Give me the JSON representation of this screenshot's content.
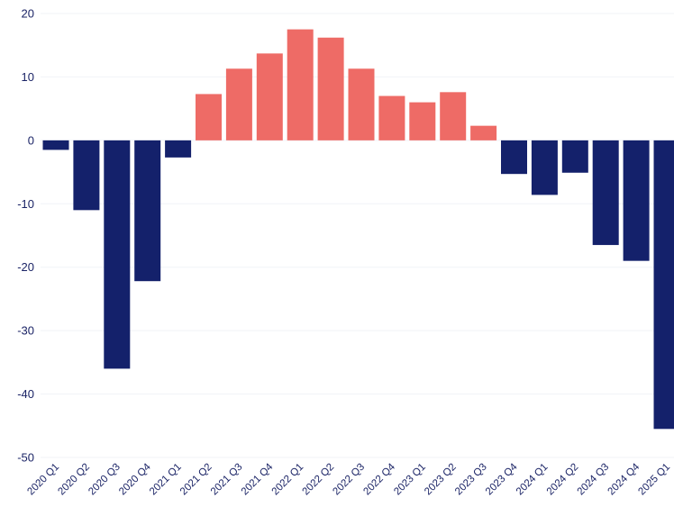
{
  "chart_data": {
    "type": "bar",
    "categories": [
      "2020 Q1",
      "2020 Q2",
      "2020 Q3",
      "2020 Q4",
      "2021 Q1",
      "2021 Q2",
      "2021 Q3",
      "2021 Q4",
      "2022 Q1",
      "2022 Q2",
      "2022 Q3",
      "2022 Q4",
      "2023 Q1",
      "2023 Q2",
      "2023 Q3",
      "2023 Q4",
      "2024 Q1",
      "2024 Q2",
      "2024 Q3",
      "2024 Q4",
      "2025 Q1"
    ],
    "values": [
      -1.5,
      -11,
      -36,
      -22.2,
      -2.7,
      7.3,
      11.3,
      13.7,
      17.5,
      16.2,
      11.3,
      7,
      6,
      7.6,
      2.3,
      -5.3,
      -8.6,
      -5.1,
      -16.5,
      -19,
      -45.5
    ],
    "y_ticks": [
      "20",
      "10",
      "0",
      "-10",
      "-20",
      "-30",
      "-40",
      "-50"
    ],
    "ylim": [
      -50,
      20
    ],
    "grid": true,
    "colors": {
      "positive": "#ee6b66",
      "negative": "#14216b"
    },
    "title": "",
    "xlabel": "",
    "ylabel": ""
  }
}
